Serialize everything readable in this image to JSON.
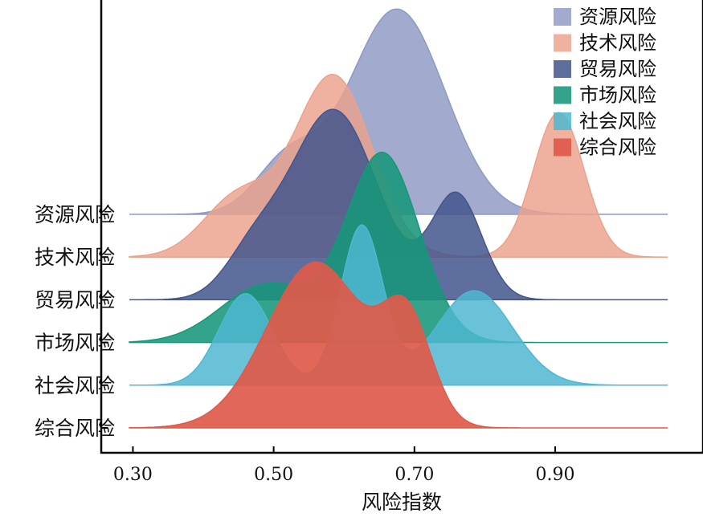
{
  "chart_data": {
    "type": "ridgeline",
    "xlabel": "风险指数",
    "x_ticks": [
      "0.30",
      "0.50",
      "0.70",
      "0.90"
    ],
    "x_tick_values": [
      0.3,
      0.5,
      0.7,
      0.9
    ],
    "xlim": [
      0.255,
      1.11
    ],
    "data_x_range": [
      0.295,
      1.06
    ],
    "legend_position": "top-right",
    "series": [
      {
        "name": "资源风险",
        "color": "#8e99c2",
        "opacity": 0.82,
        "components": [
          {
            "mu": 0.52,
            "sd": 0.045,
            "h": 0.55
          },
          {
            "mu": 0.675,
            "sd": 0.068,
            "h": 2.13
          }
        ]
      },
      {
        "name": "技术风险",
        "color": "#eca18c",
        "opacity": 0.82,
        "components": [
          {
            "mu": 0.45,
            "sd": 0.05,
            "h": 0.62
          },
          {
            "mu": 0.585,
            "sd": 0.055,
            "h": 1.88
          },
          {
            "mu": 0.905,
            "sd": 0.036,
            "h": 1.5
          }
        ]
      },
      {
        "name": "贸易风险",
        "color": "#43568c",
        "opacity": 0.85,
        "components": [
          {
            "mu": 0.47,
            "sd": 0.04,
            "h": 0.42
          },
          {
            "mu": 0.585,
            "sd": 0.062,
            "h": 1.97
          },
          {
            "mu": 0.76,
            "sd": 0.036,
            "h": 1.08
          }
        ]
      },
      {
        "name": "市场风险",
        "color": "#17967a",
        "opacity": 0.88,
        "components": [
          {
            "mu": 0.49,
            "sd": 0.065,
            "h": 0.6
          },
          {
            "mu": 0.655,
            "sd": 0.052,
            "h": 1.95
          }
        ]
      },
      {
        "name": "社会风险",
        "color": "#4fb7d1",
        "opacity": 0.85,
        "components": [
          {
            "mu": 0.46,
            "sd": 0.038,
            "h": 0.95
          },
          {
            "mu": 0.625,
            "sd": 0.03,
            "h": 1.65
          },
          {
            "mu": 0.785,
            "sd": 0.055,
            "h": 0.98
          }
        ]
      },
      {
        "name": "综合风险",
        "color": "#de5a4a",
        "opacity": 0.92,
        "components": [
          {
            "mu": 0.56,
            "sd": 0.07,
            "h": 1.72
          },
          {
            "mu": 0.69,
            "sd": 0.035,
            "h": 1.02
          }
        ]
      }
    ]
  }
}
